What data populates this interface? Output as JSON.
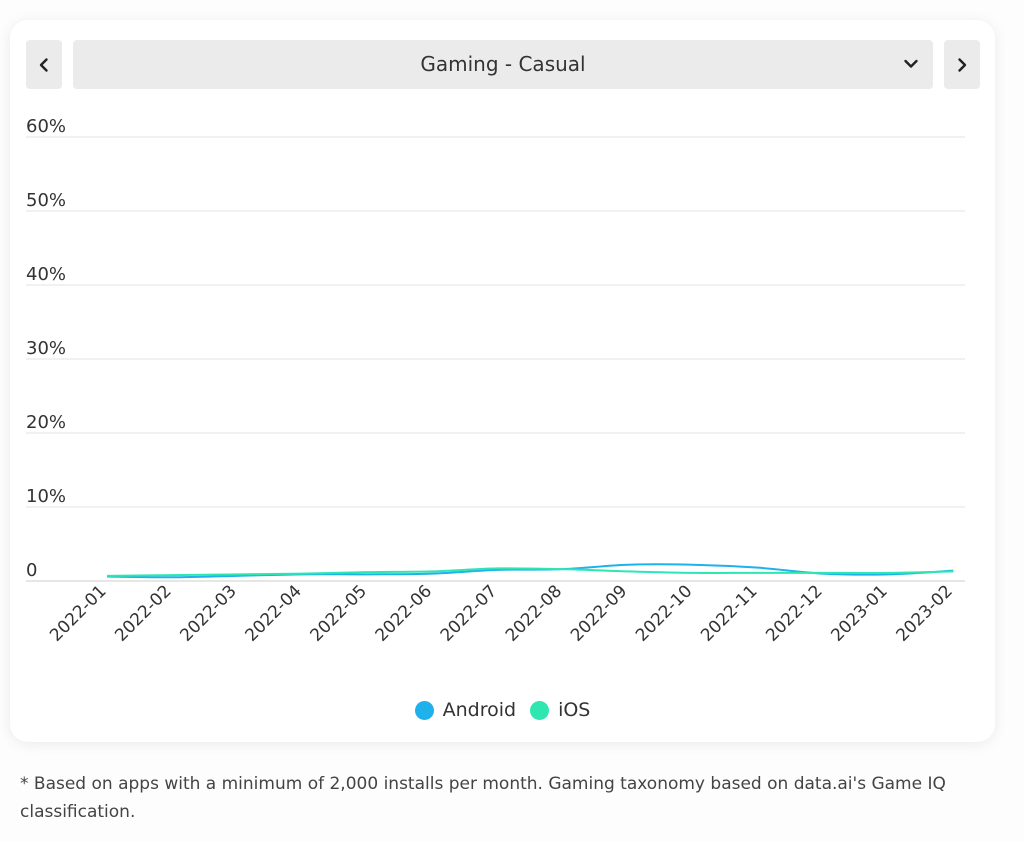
{
  "selector": {
    "label": "Gaming - Casual"
  },
  "chart_data": {
    "type": "line",
    "categories": [
      "2022-01",
      "2022-02",
      "2022-03",
      "2022-04",
      "2022-05",
      "2022-06",
      "2022-07",
      "2022-08",
      "2022-09",
      "2022-10",
      "2022-11",
      "2022-12",
      "2023-01",
      "2023-02"
    ],
    "y_tick_labels": [
      "0",
      "10%",
      "20%",
      "30%",
      "40%",
      "50%",
      "60%"
    ],
    "y_tick_values": [
      0,
      10,
      20,
      30,
      40,
      50,
      60
    ],
    "ylim": [
      0,
      60
    ],
    "grid": true,
    "legend_position": "bottom",
    "series": [
      {
        "name": "Android",
        "color": "#1fb1ec",
        "values": [
          0.6,
          0.5,
          0.7,
          0.9,
          0.9,
          1.0,
          1.5,
          1.6,
          2.2,
          2.2,
          1.8,
          1.0,
          0.9,
          1.4
        ]
      },
      {
        "name": "iOS",
        "color": "#2ee6b0",
        "values": [
          0.7,
          0.8,
          0.9,
          1.0,
          1.2,
          1.3,
          1.7,
          1.6,
          1.3,
          1.1,
          1.1,
          1.1,
          1.1,
          1.3
        ]
      }
    ]
  },
  "footnote": "* Based on apps with a minimum of 2,000 installs per month. Gaming taxonomy based on data.ai's Game IQ classification."
}
